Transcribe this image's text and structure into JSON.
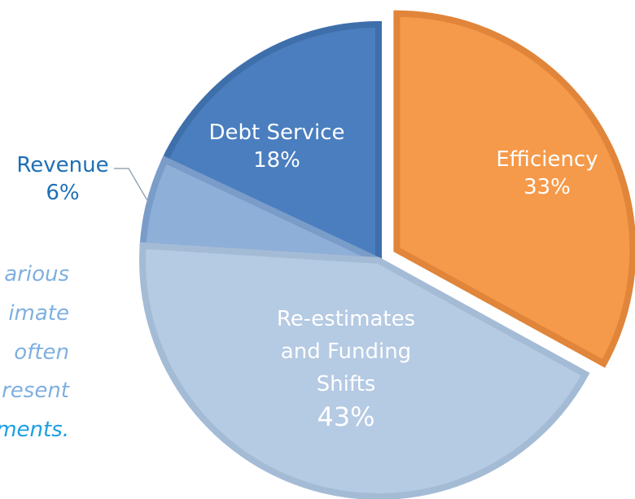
{
  "chart_data": {
    "type": "pie",
    "categories": [
      "Efficiency",
      "Re-estimates and Funding Shifts",
      "Revenue",
      "Debt Service"
    ],
    "values": [
      33,
      43,
      6,
      18
    ],
    "value_labels": [
      "33%",
      "43%",
      "6%",
      "18%"
    ],
    "colors": [
      "#f59a4a",
      "#b5cae3",
      "#8eafd8",
      "#4a7ebf"
    ],
    "exploded": [
      "Efficiency"
    ],
    "annotation_lines": [
      "arious",
      "imate",
      "often",
      "resent",
      "ments."
    ]
  }
}
